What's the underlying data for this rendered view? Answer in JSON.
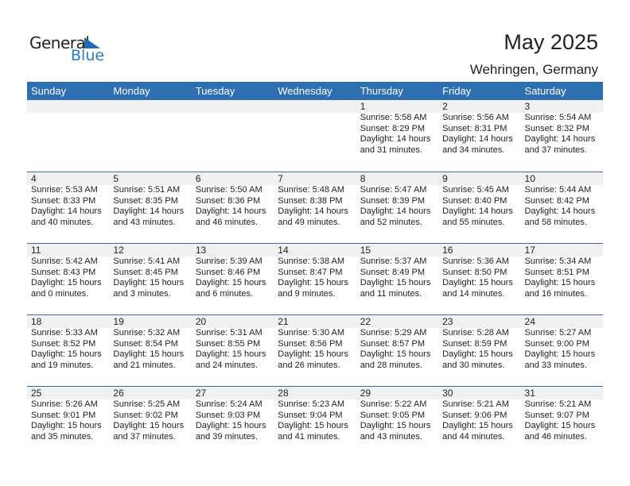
{
  "logo": {
    "text_general": "General",
    "text_blue": "Blue"
  },
  "title": "May 2025",
  "location": "Wehringen, Germany",
  "colors": {
    "header": "#2e6fb1",
    "logo_blue": "#2a7cc7"
  },
  "weekdays": [
    "Sunday",
    "Monday",
    "Tuesday",
    "Wednesday",
    "Thursday",
    "Friday",
    "Saturday"
  ],
  "weeks": [
    [
      null,
      null,
      null,
      null,
      {
        "day": "1",
        "sunrise": "Sunrise: 5:58 AM",
        "sunset": "Sunset: 8:29 PM",
        "daylight1": "Daylight: 14 hours",
        "daylight2": "and 31 minutes."
      },
      {
        "day": "2",
        "sunrise": "Sunrise: 5:56 AM",
        "sunset": "Sunset: 8:31 PM",
        "daylight1": "Daylight: 14 hours",
        "daylight2": "and 34 minutes."
      },
      {
        "day": "3",
        "sunrise": "Sunrise: 5:54 AM",
        "sunset": "Sunset: 8:32 PM",
        "daylight1": "Daylight: 14 hours",
        "daylight2": "and 37 minutes."
      }
    ],
    [
      {
        "day": "4",
        "sunrise": "Sunrise: 5:53 AM",
        "sunset": "Sunset: 8:33 PM",
        "daylight1": "Daylight: 14 hours",
        "daylight2": "and 40 minutes."
      },
      {
        "day": "5",
        "sunrise": "Sunrise: 5:51 AM",
        "sunset": "Sunset: 8:35 PM",
        "daylight1": "Daylight: 14 hours",
        "daylight2": "and 43 minutes."
      },
      {
        "day": "6",
        "sunrise": "Sunrise: 5:50 AM",
        "sunset": "Sunset: 8:36 PM",
        "daylight1": "Daylight: 14 hours",
        "daylight2": "and 46 minutes."
      },
      {
        "day": "7",
        "sunrise": "Sunrise: 5:48 AM",
        "sunset": "Sunset: 8:38 PM",
        "daylight1": "Daylight: 14 hours",
        "daylight2": "and 49 minutes."
      },
      {
        "day": "8",
        "sunrise": "Sunrise: 5:47 AM",
        "sunset": "Sunset: 8:39 PM",
        "daylight1": "Daylight: 14 hours",
        "daylight2": "and 52 minutes."
      },
      {
        "day": "9",
        "sunrise": "Sunrise: 5:45 AM",
        "sunset": "Sunset: 8:40 PM",
        "daylight1": "Daylight: 14 hours",
        "daylight2": "and 55 minutes."
      },
      {
        "day": "10",
        "sunrise": "Sunrise: 5:44 AM",
        "sunset": "Sunset: 8:42 PM",
        "daylight1": "Daylight: 14 hours",
        "daylight2": "and 58 minutes."
      }
    ],
    [
      {
        "day": "11",
        "sunrise": "Sunrise: 5:42 AM",
        "sunset": "Sunset: 8:43 PM",
        "daylight1": "Daylight: 15 hours",
        "daylight2": "and 0 minutes."
      },
      {
        "day": "12",
        "sunrise": "Sunrise: 5:41 AM",
        "sunset": "Sunset: 8:45 PM",
        "daylight1": "Daylight: 15 hours",
        "daylight2": "and 3 minutes."
      },
      {
        "day": "13",
        "sunrise": "Sunrise: 5:39 AM",
        "sunset": "Sunset: 8:46 PM",
        "daylight1": "Daylight: 15 hours",
        "daylight2": "and 6 minutes."
      },
      {
        "day": "14",
        "sunrise": "Sunrise: 5:38 AM",
        "sunset": "Sunset: 8:47 PM",
        "daylight1": "Daylight: 15 hours",
        "daylight2": "and 9 minutes."
      },
      {
        "day": "15",
        "sunrise": "Sunrise: 5:37 AM",
        "sunset": "Sunset: 8:49 PM",
        "daylight1": "Daylight: 15 hours",
        "daylight2": "and 11 minutes."
      },
      {
        "day": "16",
        "sunrise": "Sunrise: 5:36 AM",
        "sunset": "Sunset: 8:50 PM",
        "daylight1": "Daylight: 15 hours",
        "daylight2": "and 14 minutes."
      },
      {
        "day": "17",
        "sunrise": "Sunrise: 5:34 AM",
        "sunset": "Sunset: 8:51 PM",
        "daylight1": "Daylight: 15 hours",
        "daylight2": "and 16 minutes."
      }
    ],
    [
      {
        "day": "18",
        "sunrise": "Sunrise: 5:33 AM",
        "sunset": "Sunset: 8:52 PM",
        "daylight1": "Daylight: 15 hours",
        "daylight2": "and 19 minutes."
      },
      {
        "day": "19",
        "sunrise": "Sunrise: 5:32 AM",
        "sunset": "Sunset: 8:54 PM",
        "daylight1": "Daylight: 15 hours",
        "daylight2": "and 21 minutes."
      },
      {
        "day": "20",
        "sunrise": "Sunrise: 5:31 AM",
        "sunset": "Sunset: 8:55 PM",
        "daylight1": "Daylight: 15 hours",
        "daylight2": "and 24 minutes."
      },
      {
        "day": "21",
        "sunrise": "Sunrise: 5:30 AM",
        "sunset": "Sunset: 8:56 PM",
        "daylight1": "Daylight: 15 hours",
        "daylight2": "and 26 minutes."
      },
      {
        "day": "22",
        "sunrise": "Sunrise: 5:29 AM",
        "sunset": "Sunset: 8:57 PM",
        "daylight1": "Daylight: 15 hours",
        "daylight2": "and 28 minutes."
      },
      {
        "day": "23",
        "sunrise": "Sunrise: 5:28 AM",
        "sunset": "Sunset: 8:59 PM",
        "daylight1": "Daylight: 15 hours",
        "daylight2": "and 30 minutes."
      },
      {
        "day": "24",
        "sunrise": "Sunrise: 5:27 AM",
        "sunset": "Sunset: 9:00 PM",
        "daylight1": "Daylight: 15 hours",
        "daylight2": "and 33 minutes."
      }
    ],
    [
      {
        "day": "25",
        "sunrise": "Sunrise: 5:26 AM",
        "sunset": "Sunset: 9:01 PM",
        "daylight1": "Daylight: 15 hours",
        "daylight2": "and 35 minutes."
      },
      {
        "day": "26",
        "sunrise": "Sunrise: 5:25 AM",
        "sunset": "Sunset: 9:02 PM",
        "daylight1": "Daylight: 15 hours",
        "daylight2": "and 37 minutes."
      },
      {
        "day": "27",
        "sunrise": "Sunrise: 5:24 AM",
        "sunset": "Sunset: 9:03 PM",
        "daylight1": "Daylight: 15 hours",
        "daylight2": "and 39 minutes."
      },
      {
        "day": "28",
        "sunrise": "Sunrise: 5:23 AM",
        "sunset": "Sunset: 9:04 PM",
        "daylight1": "Daylight: 15 hours",
        "daylight2": "and 41 minutes."
      },
      {
        "day": "29",
        "sunrise": "Sunrise: 5:22 AM",
        "sunset": "Sunset: 9:05 PM",
        "daylight1": "Daylight: 15 hours",
        "daylight2": "and 43 minutes."
      },
      {
        "day": "30",
        "sunrise": "Sunrise: 5:21 AM",
        "sunset": "Sunset: 9:06 PM",
        "daylight1": "Daylight: 15 hours",
        "daylight2": "and 44 minutes."
      },
      {
        "day": "31",
        "sunrise": "Sunrise: 5:21 AM",
        "sunset": "Sunset: 9:07 PM",
        "daylight1": "Daylight: 15 hours",
        "daylight2": "and 46 minutes."
      }
    ]
  ]
}
